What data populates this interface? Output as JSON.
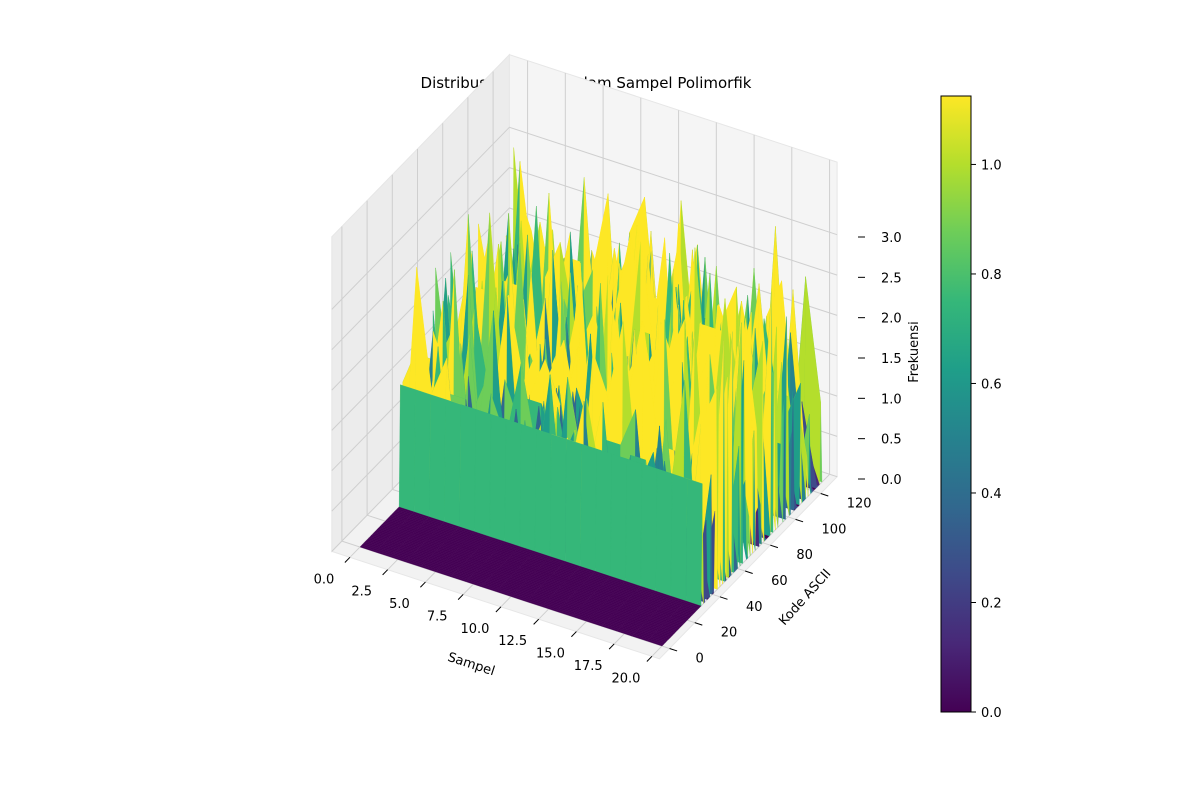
{
  "chart_data": {
    "type": "surface3d",
    "title": "Distribusi Karakter dalam Sampel Polimorfik",
    "xlabel": "Sampel",
    "ylabel": "Kode ASCII",
    "zlabel": "Frekuensi",
    "x_ticks": [
      "0.0",
      "2.5",
      "5.0",
      "7.5",
      "10.0",
      "12.5",
      "15.0",
      "17.5",
      "20.0"
    ],
    "y_ticks": [
      "0",
      "20",
      "40",
      "60",
      "80",
      "100",
      "120"
    ],
    "z_ticks": [
      "0.0",
      "0.5",
      "1.0",
      "1.5",
      "2.0",
      "2.5",
      "3.0"
    ],
    "xlim": [
      0,
      20
    ],
    "ylim": [
      0,
      127
    ],
    "zlim": [
      0,
      3
    ],
    "colormap": "viridis",
    "colorbar": {
      "range": [
        0,
        1.125
      ],
      "ticks": [
        "0.0",
        "0.2",
        "0.4",
        "0.6",
        "0.8",
        "1.0"
      ]
    },
    "grid": true,
    "samples": 21,
    "ascii_codes": 128,
    "surface_note_values": {
      "baseline_region_ascii": [
        0,
        32
      ],
      "baseline_frequency": 0,
      "space_char_ascii": 32,
      "space_char_frequency": 1.5,
      "printable_region_ascii": [
        33,
        126
      ],
      "printable_max_frequency": 3
    }
  }
}
